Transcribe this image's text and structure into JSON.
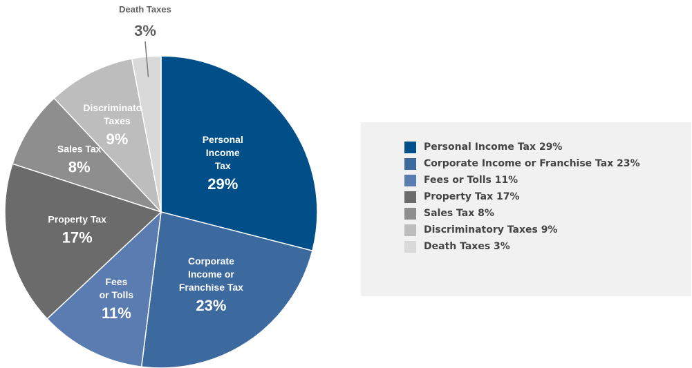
{
  "chart_data": {
    "type": "pie",
    "slices": [
      {
        "name": "Personal Income Tax",
        "value": 29,
        "color": "#004f88",
        "label_lines": [
          "Personal",
          "Income",
          "Tax"
        ],
        "pct_label": "29%",
        "legend": "Personal Income Tax 29%"
      },
      {
        "name": "Corporate Income or Franchise Tax",
        "value": 23,
        "color": "#3c6a9f",
        "label_lines": [
          "Corporate",
          "Income or",
          "Franchise Tax"
        ],
        "pct_label": "23%",
        "legend": "Corporate Income or Franchise Tax 23%"
      },
      {
        "name": "Fees or Tolls",
        "value": 11,
        "color": "#5a7cb0",
        "label_lines": [
          "Fees",
          "or Tolls"
        ],
        "pct_label": "11%",
        "legend": "Fees or Tolls 11%"
      },
      {
        "name": "Property Tax",
        "value": 17,
        "color": "#6b6b6b",
        "label_lines": [
          "Property Tax"
        ],
        "pct_label": "17%",
        "legend": "Property Tax 17%"
      },
      {
        "name": "Sales Tax",
        "value": 8,
        "color": "#8e8e8e",
        "label_lines": [
          "Sales Tax"
        ],
        "pct_label": "8%",
        "legend": "Sales Tax 8%"
      },
      {
        "name": "Discriminatory Taxes",
        "value": 9,
        "color": "#bdbdbd",
        "label_lines": [
          "Discriminatory",
          "Taxes"
        ],
        "pct_label": "9%",
        "legend": "Discriminatory Taxes 9%"
      },
      {
        "name": "Death Taxes",
        "value": 3,
        "color": "#d9d9d9",
        "label_lines": [
          "Death Taxes"
        ],
        "pct_label": "3%",
        "legend": "Death Taxes 3%"
      }
    ],
    "title": "",
    "legend_position": "right",
    "label_text_color": "#ffffff",
    "outside_label_color": "#5f5f5f"
  }
}
